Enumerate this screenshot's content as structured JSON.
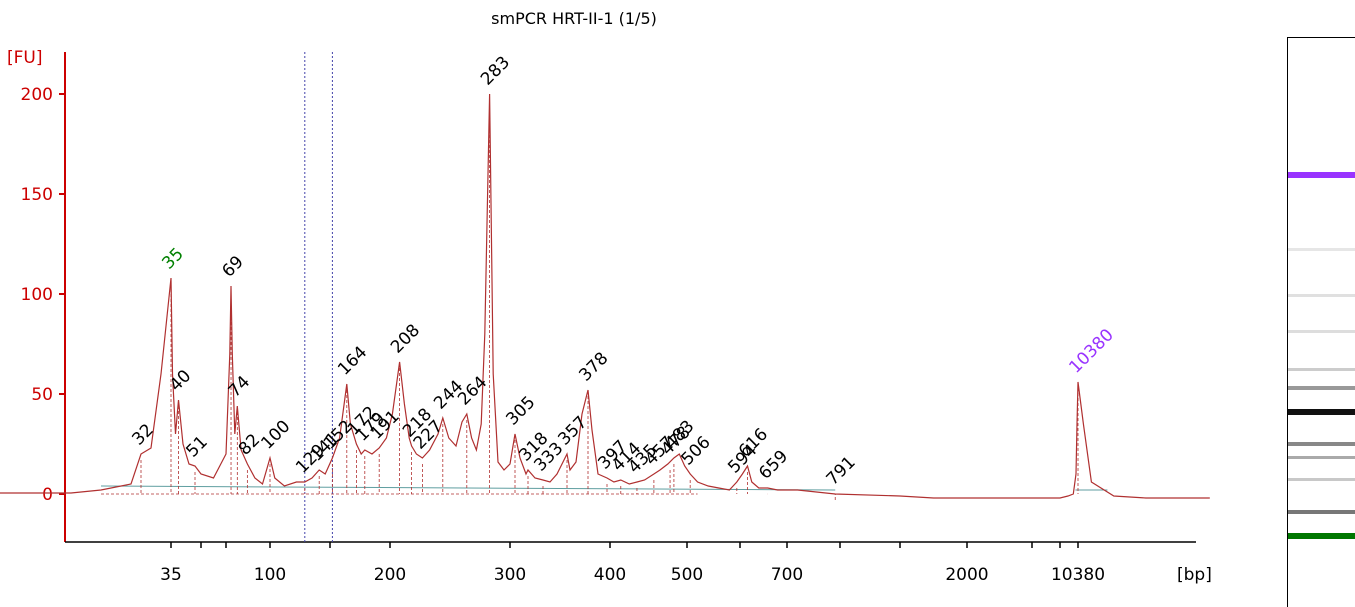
{
  "chart_data": {
    "type": "line",
    "title": "smPCR HRT-II-1 (1/5)",
    "ylabel": "[FU]",
    "xlabel": "[bp]",
    "ylim": [
      -22,
      222
    ],
    "yticks": [
      0,
      50,
      100,
      150,
      200
    ],
    "xticks": [
      "35",
      "100",
      "200",
      "300",
      "400",
      "500",
      "700",
      "2000",
      "10380"
    ],
    "x_axis_positions": [
      35,
      55,
      65,
      100,
      150,
      200,
      300,
      400,
      500,
      600,
      700,
      800,
      1000,
      2000,
      3000,
      7000,
      10380
    ],
    "trace": [
      [
        10,
        1
      ],
      [
        18,
        0.5
      ],
      [
        25,
        0.5
      ],
      [
        28,
        2
      ],
      [
        31,
        5
      ],
      [
        32,
        20
      ],
      [
        33,
        23
      ],
      [
        34,
        60
      ],
      [
        35,
        108
      ],
      [
        36,
        60
      ],
      [
        38,
        30
      ],
      [
        40,
        47
      ],
      [
        43,
        25
      ],
      [
        47,
        15
      ],
      [
        51,
        14
      ],
      [
        55,
        10
      ],
      [
        60,
        8
      ],
      [
        65,
        20
      ],
      [
        68,
        70
      ],
      [
        69,
        104
      ],
      [
        70,
        70
      ],
      [
        72,
        30
      ],
      [
        74,
        44
      ],
      [
        77,
        22
      ],
      [
        82,
        15
      ],
      [
        88,
        8
      ],
      [
        94,
        5
      ],
      [
        100,
        18
      ],
      [
        104,
        8
      ],
      [
        112,
        4
      ],
      [
        122,
        6
      ],
      [
        129,
        6
      ],
      [
        135,
        8
      ],
      [
        141,
        12
      ],
      [
        146,
        10
      ],
      [
        152,
        18
      ],
      [
        158,
        28
      ],
      [
        164,
        55
      ],
      [
        167,
        35
      ],
      [
        172,
        25
      ],
      [
        176,
        20
      ],
      [
        179,
        22
      ],
      [
        185,
        20
      ],
      [
        191,
        23
      ],
      [
        197,
        28
      ],
      [
        202,
        40
      ],
      [
        208,
        66
      ],
      [
        212,
        45
      ],
      [
        216,
        28
      ],
      [
        218,
        24
      ],
      [
        222,
        20
      ],
      [
        227,
        18
      ],
      [
        233,
        22
      ],
      [
        240,
        30
      ],
      [
        244,
        38
      ],
      [
        249,
        28
      ],
      [
        255,
        24
      ],
      [
        260,
        36
      ],
      [
        264,
        40
      ],
      [
        268,
        28
      ],
      [
        272,
        22
      ],
      [
        276,
        35
      ],
      [
        279,
        80
      ],
      [
        283,
        200
      ],
      [
        286,
        60
      ],
      [
        290,
        16
      ],
      [
        295,
        12
      ],
      [
        300,
        15
      ],
      [
        305,
        30
      ],
      [
        310,
        18
      ],
      [
        316,
        10
      ],
      [
        318,
        12
      ],
      [
        325,
        8
      ],
      [
        333,
        7
      ],
      [
        340,
        6
      ],
      [
        347,
        10
      ],
      [
        357,
        20
      ],
      [
        360,
        12
      ],
      [
        366,
        16
      ],
      [
        372,
        40
      ],
      [
        378,
        52
      ],
      [
        382,
        32
      ],
      [
        388,
        10
      ],
      [
        397,
        8
      ],
      [
        405,
        6
      ],
      [
        414,
        7
      ],
      [
        425,
        5
      ],
      [
        435,
        6
      ],
      [
        445,
        7
      ],
      [
        457,
        10
      ],
      [
        465,
        12
      ],
      [
        475,
        15
      ],
      [
        483,
        18
      ],
      [
        490,
        20
      ],
      [
        497,
        14
      ],
      [
        506,
        10
      ],
      [
        520,
        6
      ],
      [
        540,
        4
      ],
      [
        560,
        3
      ],
      [
        580,
        2
      ],
      [
        594,
        6
      ],
      [
        605,
        10
      ],
      [
        616,
        14
      ],
      [
        625,
        6
      ],
      [
        640,
        3
      ],
      [
        659,
        3
      ],
      [
        680,
        2
      ],
      [
        720,
        2
      ],
      [
        791,
        0
      ],
      [
        1000,
        -1
      ],
      [
        1500,
        -2
      ],
      [
        2000,
        -2
      ],
      [
        3000,
        -2
      ],
      [
        5000,
        -2
      ],
      [
        7000,
        -2
      ],
      [
        8500,
        -1
      ],
      [
        9500,
        0
      ],
      [
        10000,
        10
      ],
      [
        10200,
        35
      ],
      [
        10380,
        56
      ],
      [
        10550,
        35
      ],
      [
        10800,
        6
      ],
      [
        11500,
        -1
      ],
      [
        12500,
        -2
      ],
      [
        13500,
        -2
      ],
      [
        14500,
        -2
      ]
    ],
    "peaks": [
      {
        "label": "32",
        "bp": 32,
        "fu": 20,
        "color": "#000000"
      },
      {
        "label": "35",
        "bp": 35,
        "fu": 108,
        "color": "#008000"
      },
      {
        "label": "40",
        "bp": 40,
        "fu": 47,
        "color": "#000000"
      },
      {
        "label": "51",
        "bp": 51,
        "fu": 14,
        "color": "#000000"
      },
      {
        "label": "69",
        "bp": 69,
        "fu": 104,
        "color": "#000000"
      },
      {
        "label": "74",
        "bp": 74,
        "fu": 44,
        "color": "#000000"
      },
      {
        "label": "82",
        "bp": 82,
        "fu": 15,
        "color": "#000000"
      },
      {
        "label": "100",
        "bp": 100,
        "fu": 18,
        "color": "#000000"
      },
      {
        "label": "129",
        "bp": 129,
        "fu": 6,
        "color": "#000000"
      },
      {
        "label": "141",
        "bp": 141,
        "fu": 12,
        "color": "#000000"
      },
      {
        "label": "152",
        "bp": 152,
        "fu": 18,
        "color": "#000000"
      },
      {
        "label": "164",
        "bp": 164,
        "fu": 55,
        "color": "#000000"
      },
      {
        "label": "172",
        "bp": 172,
        "fu": 25,
        "color": "#000000"
      },
      {
        "label": "179",
        "bp": 179,
        "fu": 22,
        "color": "#000000"
      },
      {
        "label": "191",
        "bp": 191,
        "fu": 23,
        "color": "#000000"
      },
      {
        "label": "208",
        "bp": 208,
        "fu": 66,
        "color": "#000000"
      },
      {
        "label": "218",
        "bp": 218,
        "fu": 24,
        "color": "#000000"
      },
      {
        "label": "227",
        "bp": 227,
        "fu": 18,
        "color": "#000000"
      },
      {
        "label": "244",
        "bp": 244,
        "fu": 38,
        "color": "#000000"
      },
      {
        "label": "264",
        "bp": 264,
        "fu": 40,
        "color": "#000000"
      },
      {
        "label": "283",
        "bp": 283,
        "fu": 200,
        "color": "#000000"
      },
      {
        "label": "305",
        "bp": 305,
        "fu": 30,
        "color": "#000000"
      },
      {
        "label": "318",
        "bp": 318,
        "fu": 12,
        "color": "#000000"
      },
      {
        "label": "333",
        "bp": 333,
        "fu": 7,
        "color": "#000000"
      },
      {
        "label": "357",
        "bp": 357,
        "fu": 20,
        "color": "#000000"
      },
      {
        "label": "378",
        "bp": 378,
        "fu": 52,
        "color": "#000000"
      },
      {
        "label": "397",
        "bp": 397,
        "fu": 8,
        "color": "#000000"
      },
      {
        "label": "414",
        "bp": 414,
        "fu": 7,
        "color": "#000000"
      },
      {
        "label": "435",
        "bp": 435,
        "fu": 6,
        "color": "#000000"
      },
      {
        "label": "457",
        "bp": 457,
        "fu": 10,
        "color": "#000000"
      },
      {
        "label": "478",
        "bp": 478,
        "fu": 15,
        "color": "#000000"
      },
      {
        "label": "483",
        "bp": 483,
        "fu": 18,
        "color": "#000000"
      },
      {
        "label": "506",
        "bp": 506,
        "fu": 10,
        "color": "#000000"
      },
      {
        "label": "594",
        "bp": 594,
        "fu": 6,
        "color": "#000000"
      },
      {
        "label": "616",
        "bp": 616,
        "fu": 14,
        "color": "#000000"
      },
      {
        "label": "659",
        "bp": 659,
        "fu": 3,
        "color": "#000000"
      },
      {
        "label": "791",
        "bp": 791,
        "fu": 0,
        "color": "#000000"
      },
      {
        "label": "10380",
        "bp": 10380,
        "fu": 56,
        "color": "#9933ff"
      }
    ],
    "markers": [
      {
        "name": "lower-marker",
        "bp": 35,
        "color": "#008000"
      },
      {
        "name": "upper-marker",
        "bp": 10380,
        "color": "#9933ff"
      }
    ],
    "selection_lines_bp": [
      129,
      152
    ],
    "colors": {
      "axis": "#cc0000",
      "trace": "#b03030",
      "baseline": "#5f9ea0",
      "selection": "#4444aa"
    },
    "grid": false,
    "legend": "none"
  },
  "gel": {
    "bands": [
      {
        "bp": 10380,
        "color": "#9933ff",
        "weight": "strong"
      },
      {
        "bp": 7000,
        "color": "#e6e6e6",
        "weight": "faint"
      },
      {
        "bp": 2000,
        "color": "#e0e0e0",
        "weight": "faint"
      },
      {
        "bp": 791,
        "color": "#dddddd",
        "weight": "faint"
      },
      {
        "bp": 500,
        "color": "#cccccc",
        "weight": "faint"
      },
      {
        "bp": 378,
        "color": "#999999",
        "weight": "medium"
      },
      {
        "bp": 283,
        "color": "#111111",
        "weight": "strong"
      },
      {
        "bp": 208,
        "color": "#888888",
        "weight": "medium"
      },
      {
        "bp": 164,
        "color": "#aaaaaa",
        "weight": "faint"
      },
      {
        "bp": 100,
        "color": "#c8c8c8",
        "weight": "faint"
      },
      {
        "bp": 69,
        "color": "#777777",
        "weight": "medium"
      },
      {
        "bp": 35,
        "color": "#007700",
        "weight": "strong"
      }
    ]
  }
}
